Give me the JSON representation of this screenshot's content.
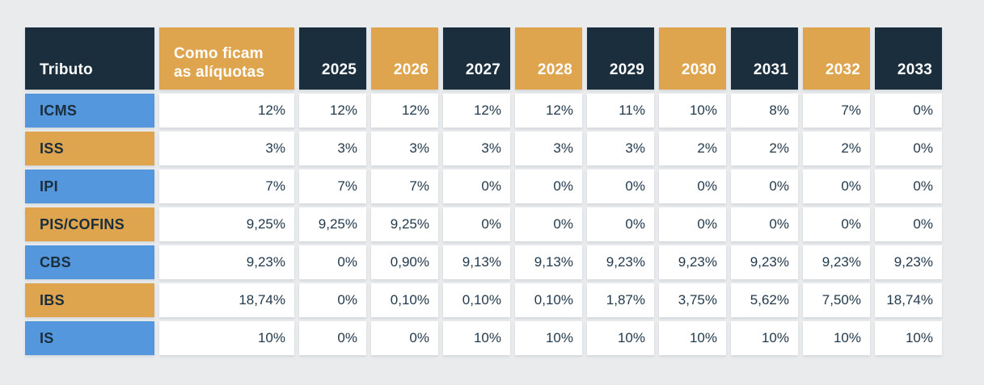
{
  "chart_data": {
    "type": "table",
    "columns": [
      "Tributo",
      "Como ficam\nas alíquotas",
      "2025",
      "2026",
      "2027",
      "2028",
      "2029",
      "2030",
      "2031",
      "2032",
      "2033"
    ],
    "rows": [
      {
        "label": "ICMS",
        "values": [
          "12%",
          "12%",
          "12%",
          "12%",
          "12%",
          "11%",
          "10%",
          "8%",
          "7%",
          "0%"
        ]
      },
      {
        "label": "ISS",
        "values": [
          "3%",
          "3%",
          "3%",
          "3%",
          "3%",
          "3%",
          "2%",
          "2%",
          "2%",
          "0%"
        ]
      },
      {
        "label": "IPI",
        "values": [
          "7%",
          "7%",
          "7%",
          "0%",
          "0%",
          "0%",
          "0%",
          "0%",
          "0%",
          "0%"
        ]
      },
      {
        "label": "PIS/COFINS",
        "values": [
          "9,25%",
          "9,25%",
          "9,25%",
          "0%",
          "0%",
          "0%",
          "0%",
          "0%",
          "0%",
          "0%"
        ]
      },
      {
        "label": "CBS",
        "values": [
          "9,23%",
          "0%",
          "0,90%",
          "9,13%",
          "9,13%",
          "9,23%",
          "9,23%",
          "9,23%",
          "9,23%",
          "9,23%"
        ]
      },
      {
        "label": "IBS",
        "values": [
          "18,74%",
          "0%",
          "0,10%",
          "0,10%",
          "0,10%",
          "1,87%",
          "3,75%",
          "5,62%",
          "7,50%",
          "18,74%"
        ]
      },
      {
        "label": "IS",
        "values": [
          "10%",
          "0%",
          "0%",
          "10%",
          "10%",
          "10%",
          "10%",
          "10%",
          "10%",
          "10%"
        ]
      }
    ],
    "layout": {
      "header_column_colors": "alternating dark/orange starting dark",
      "row_label_colors": "alternating blue/orange starting blue"
    }
  },
  "colors": {
    "header_dark": "#1b2e3d",
    "header_orange": "#dfa54e",
    "label_blue": "#5497dd",
    "label_orange": "#dfa54e",
    "value_cell_bg": "#ffffff",
    "value_text": "#233a4d",
    "header_text": "#ffffff",
    "page_bg": "#e9ebed"
  }
}
